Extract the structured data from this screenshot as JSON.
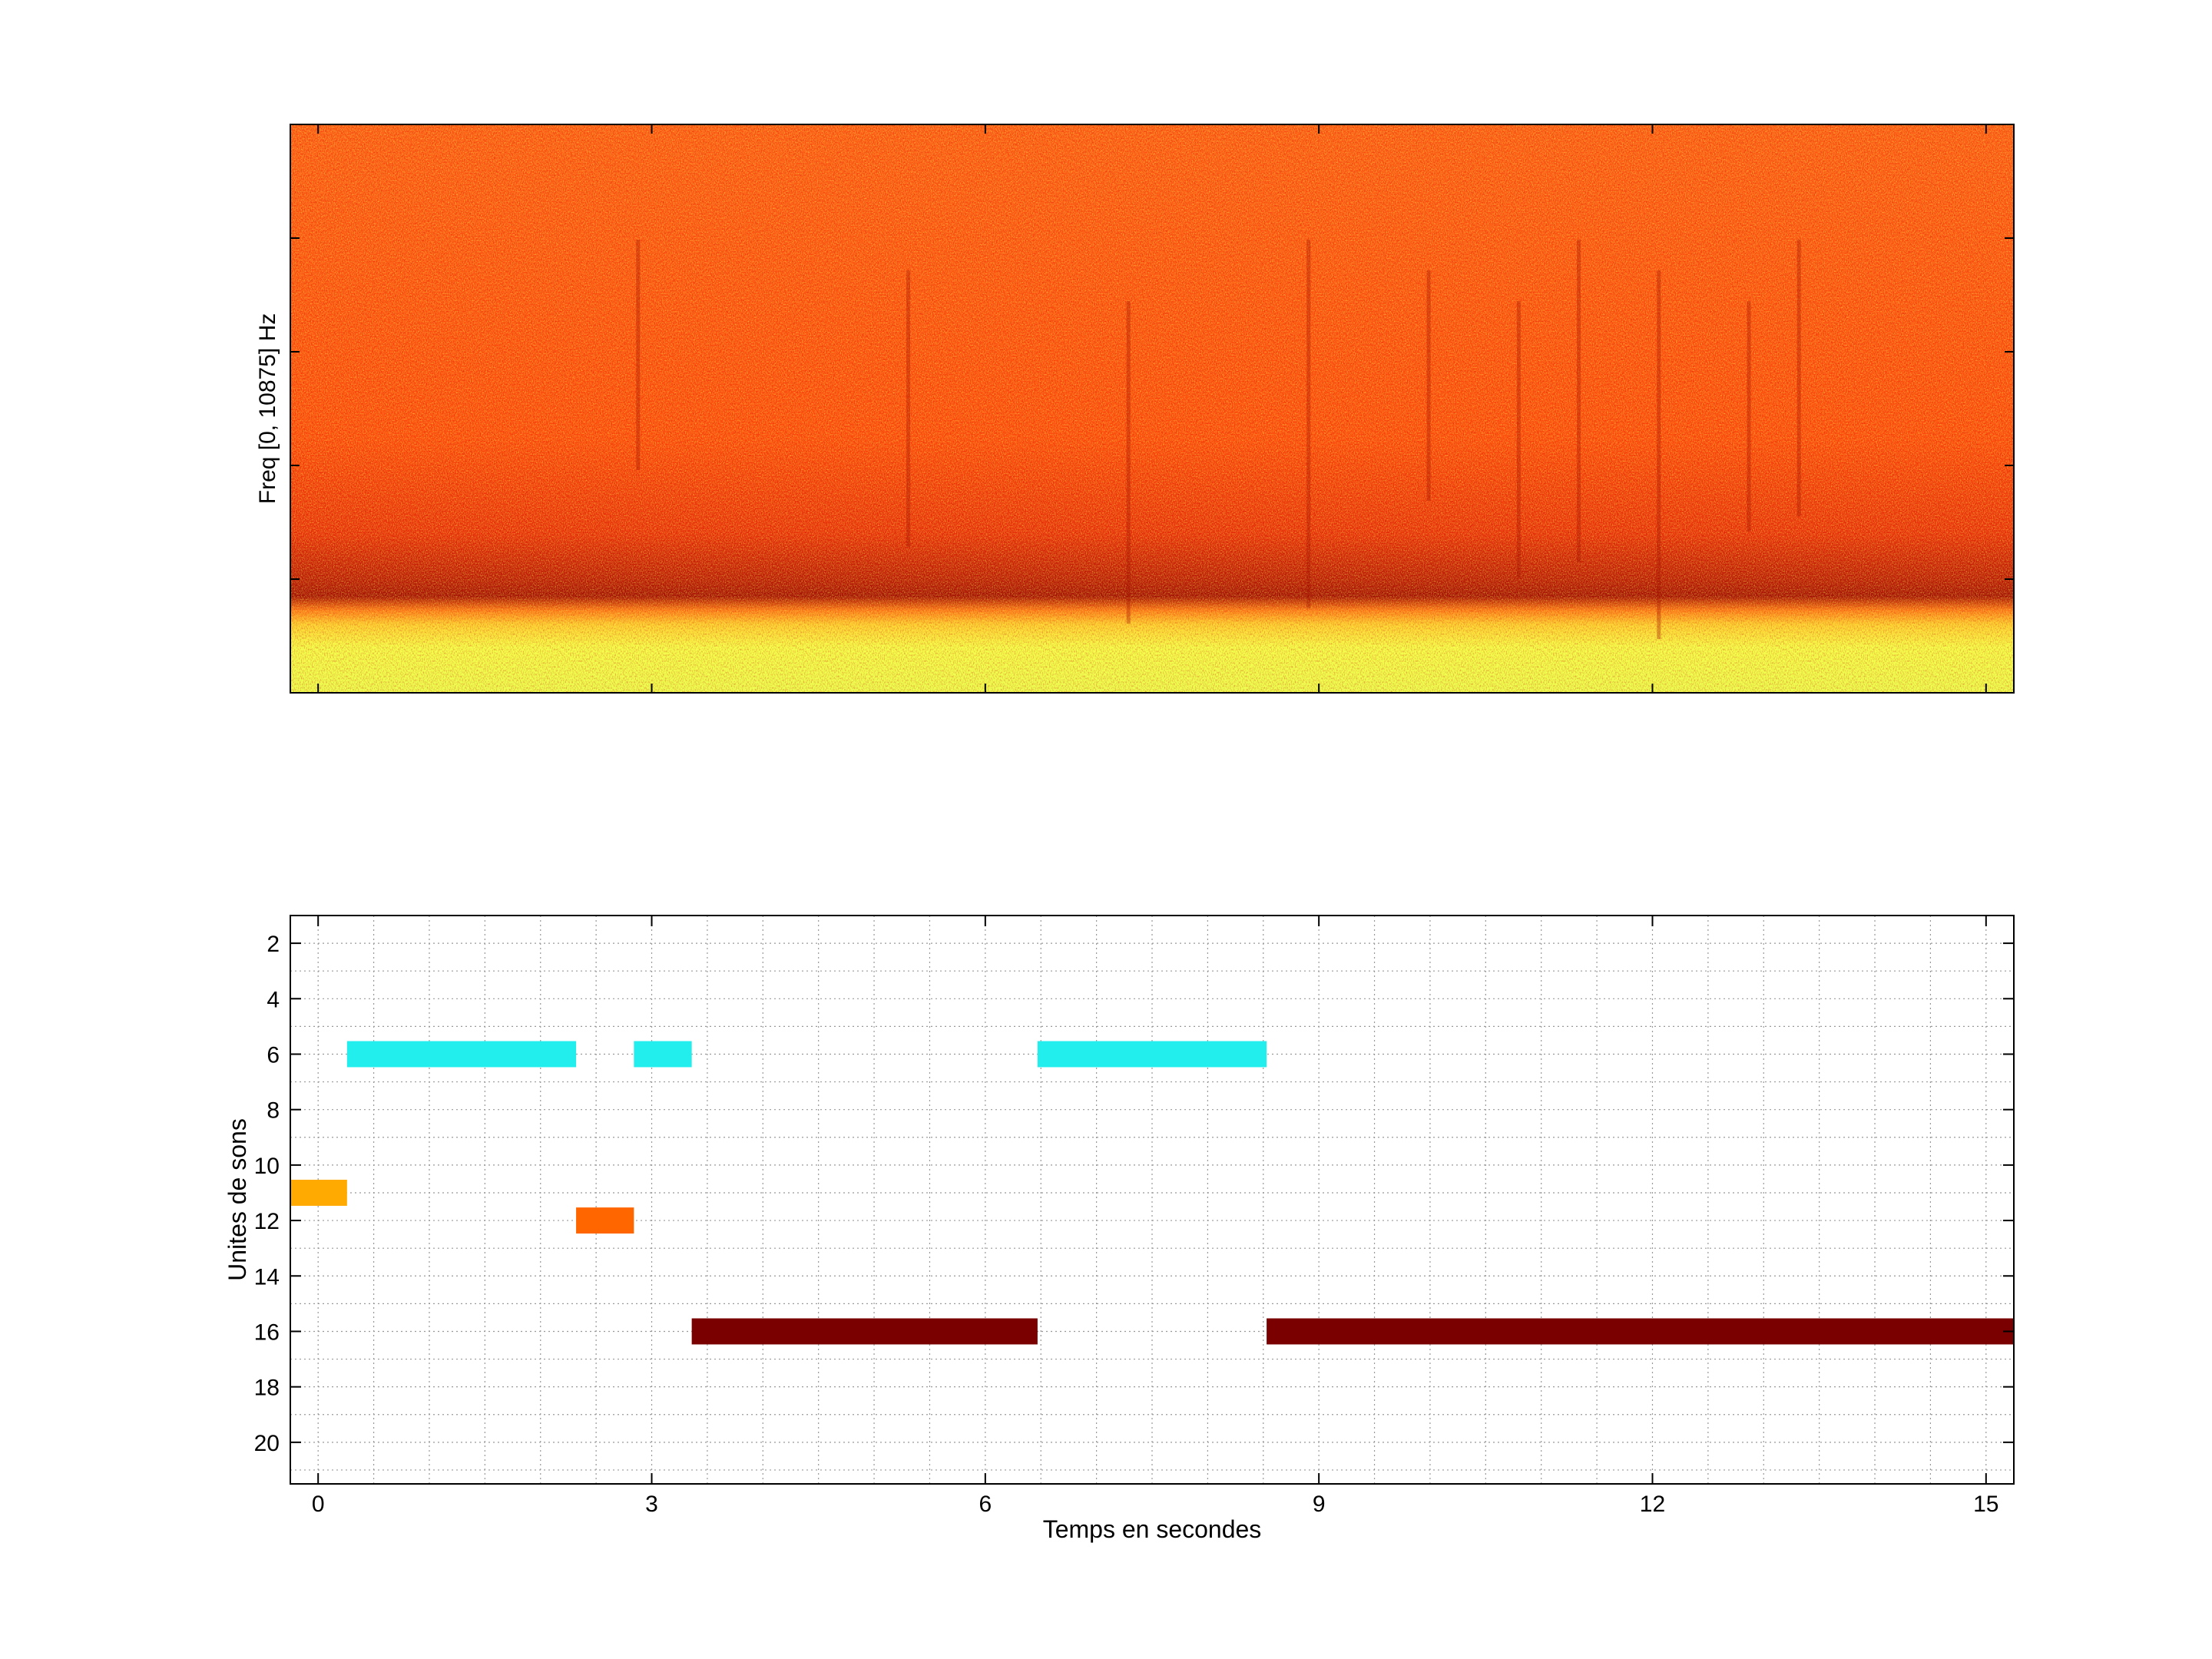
{
  "chart_data": [
    {
      "type": "heatmap",
      "title": "",
      "xlabel": "",
      "ylabel": "Freq [0, 10875] Hz",
      "y_range_hz": [
        0,
        10875
      ],
      "x_range_s": [
        -0.25,
        15.25
      ],
      "colormap": "hot",
      "description_colors": {
        "dark": "#6a0000",
        "mid": "#ff4a00",
        "bright": "#ffff40",
        "noise_base": "#ff5a10"
      }
    },
    {
      "type": "bar",
      "subtype": "timeline",
      "title": "",
      "xlabel": "Temps en secondes",
      "ylabel": "Unites de sons",
      "xlim": [
        -0.25,
        15.25
      ],
      "ylim": [
        1,
        21.5
      ],
      "y_reversed": true,
      "grid": true,
      "xticks": [
        0,
        3,
        6,
        9,
        12,
        15
      ],
      "yticks": [
        2,
        4,
        6,
        8,
        10,
        12,
        14,
        16,
        18,
        20
      ],
      "segments": [
        {
          "unit": 11,
          "start": -0.25,
          "end": 0.26,
          "color": "#ffaa00"
        },
        {
          "unit": 6,
          "start": 0.26,
          "end": 2.32,
          "color": "#22eeee"
        },
        {
          "unit": 12,
          "start": 2.32,
          "end": 2.84,
          "color": "#ff6600"
        },
        {
          "unit": 6,
          "start": 2.84,
          "end": 3.36,
          "color": "#22eeee"
        },
        {
          "unit": 16,
          "start": 3.36,
          "end": 6.47,
          "color": "#7a0000"
        },
        {
          "unit": 6,
          "start": 6.47,
          "end": 8.53,
          "color": "#22eeee"
        },
        {
          "unit": 16,
          "start": 8.53,
          "end": 15.25,
          "color": "#7a0000"
        }
      ]
    }
  ]
}
